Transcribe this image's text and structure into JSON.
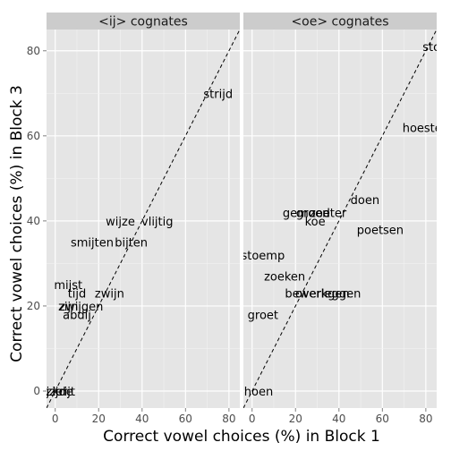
{
  "chart_data": {
    "type": "scatter",
    "xlabel": "Correct vowel choices (%) in Block 1",
    "ylabel": "Correct vowel choices (%) in Block 3",
    "xlim": [
      -4,
      85
    ],
    "ylim": [
      -4,
      85
    ],
    "x_ticks": [
      0,
      20,
      40,
      60,
      80
    ],
    "y_ticks": [
      0,
      20,
      40,
      60,
      80
    ],
    "grid": true,
    "reference_line": "y = x",
    "panels": [
      {
        "title": "<ij> cognates",
        "points": [
          {
            "label": "strijd",
            "x": 75,
            "y": 70
          },
          {
            "label": "wijze",
            "x": 30,
            "y": 40
          },
          {
            "label": "vlijtig",
            "x": 47,
            "y": 40
          },
          {
            "label": "smijten",
            "x": 17,
            "y": 35
          },
          {
            "label": "bijten",
            "x": 35,
            "y": 35
          },
          {
            "label": "mijst",
            "x": 6,
            "y": 25
          },
          {
            "label": "tijd",
            "x": 10,
            "y": 23
          },
          {
            "label": "zwijn",
            "x": 25,
            "y": 23
          },
          {
            "label": "zijn",
            "x": 6,
            "y": 20
          },
          {
            "label": "zwijgen",
            "x": 12,
            "y": 20
          },
          {
            "label": "abdij",
            "x": 10,
            "y": 18
          },
          {
            "label": "ijzer",
            "x": 0,
            "y": 0
          },
          {
            "label": "zijde",
            "x": 2,
            "y": 0
          },
          {
            "label": "krijt",
            "x": 4,
            "y": 0
          }
        ]
      },
      {
        "title": "<oe> cognates",
        "points": [
          {
            "label": "stoel",
            "x": 85,
            "y": 81
          },
          {
            "label": "hoesten",
            "x": 80,
            "y": 62
          },
          {
            "label": "doen",
            "x": 52,
            "y": 45
          },
          {
            "label": "gemoed",
            "x": 25,
            "y": 42
          },
          {
            "label": "groen",
            "x": 28,
            "y": 42
          },
          {
            "label": "zoeter",
            "x": 35,
            "y": 42
          },
          {
            "label": "koe",
            "x": 29,
            "y": 40
          },
          {
            "label": "poetsen",
            "x": 59,
            "y": 38
          },
          {
            "label": "stoemp",
            "x": 5,
            "y": 32
          },
          {
            "label": "zoeken",
            "x": 15,
            "y": 27
          },
          {
            "label": "bewerkgen",
            "x": 30,
            "y": 23
          },
          {
            "label": "overleggen",
            "x": 35,
            "y": 23
          },
          {
            "label": "groet",
            "x": 5,
            "y": 18
          },
          {
            "label": "hoen",
            "x": 3,
            "y": 0
          }
        ]
      }
    ]
  }
}
